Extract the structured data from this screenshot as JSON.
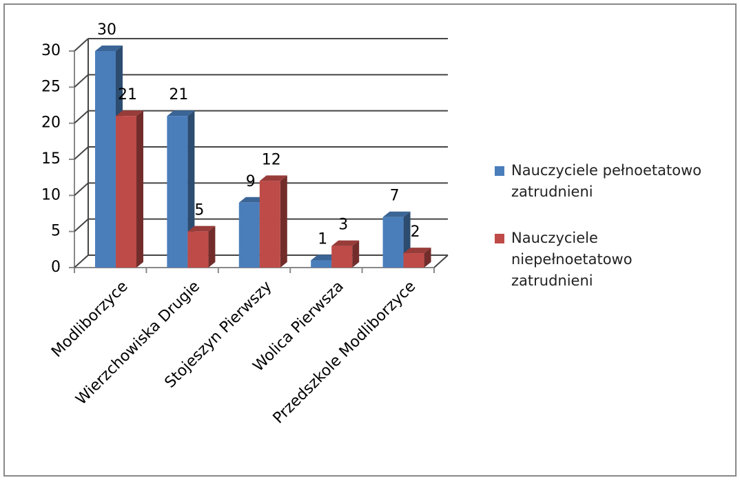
{
  "chart_data": {
    "type": "bar3d",
    "categories": [
      "Modliborzyce",
      "Wierzchowiska Drugie",
      "Stojeszyn Pierwszy",
      "Wolica Pierwsza",
      "Przedszkole Modliborzyce"
    ],
    "series": [
      {
        "name": "Nauczyciele pełnoetatowo zatrudnieni",
        "color": "#4a7ebb",
        "values": [
          30,
          21,
          9,
          1,
          7
        ]
      },
      {
        "name": "Nauczyciele niepełnoetatowo zatrudnieni",
        "color": "#be4b48",
        "values": [
          21,
          5,
          12,
          3,
          2
        ]
      }
    ],
    "ylim": [
      0,
      30
    ],
    "yticks": [
      0,
      5,
      10,
      15,
      20,
      25,
      30
    ],
    "grid": true,
    "legend": "right",
    "data_labels": true
  }
}
